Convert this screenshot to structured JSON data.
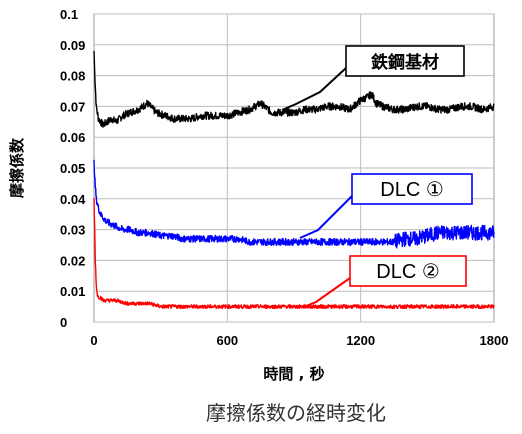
{
  "chart_data": {
    "type": "line",
    "title": "",
    "caption": "摩擦係数の経時変化",
    "xlabel": "時間 , 秒",
    "ylabel": "摩擦係数",
    "xlim": [
      0,
      1800
    ],
    "ylim": [
      0,
      0.1
    ],
    "xticks": [
      0,
      600,
      1200,
      1800
    ],
    "yticks": [
      "0",
      "0.01",
      "0.02",
      "0.03",
      "0.04",
      "0.05",
      "0.06",
      "0.07",
      "0.08",
      "0.09",
      "0.1"
    ],
    "grid": true,
    "series": [
      {
        "name": "鉄鋼基材",
        "color": "#000000",
        "x": [
          0,
          5,
          10,
          20,
          30,
          40,
          60,
          80,
          100,
          130,
          160,
          200,
          240,
          280,
          320,
          360,
          400,
          440,
          480,
          520,
          560,
          600,
          650,
          700,
          750,
          800,
          850,
          900,
          950,
          1000,
          1050,
          1100,
          1150,
          1200,
          1230,
          1250,
          1270,
          1300,
          1350,
          1400,
          1450,
          1500,
          1550,
          1600,
          1650,
          1700,
          1750,
          1800
        ],
        "y": [
          0.088,
          0.078,
          0.07,
          0.066,
          0.065,
          0.064,
          0.065,
          0.066,
          0.065,
          0.067,
          0.068,
          0.069,
          0.071,
          0.068,
          0.067,
          0.066,
          0.066,
          0.066,
          0.067,
          0.067,
          0.067,
          0.067,
          0.068,
          0.069,
          0.071,
          0.068,
          0.068,
          0.068,
          0.069,
          0.069,
          0.07,
          0.07,
          0.069,
          0.072,
          0.073,
          0.074,
          0.071,
          0.07,
          0.069,
          0.069,
          0.07,
          0.07,
          0.069,
          0.069,
          0.07,
          0.07,
          0.069,
          0.07
        ]
      },
      {
        "name": "DLC ①",
        "color": "#0000ff",
        "x": [
          0,
          5,
          10,
          20,
          30,
          50,
          70,
          100,
          130,
          160,
          200,
          250,
          300,
          350,
          400,
          450,
          500,
          550,
          600,
          650,
          700,
          750,
          800,
          850,
          900,
          950,
          1000,
          1050,
          1100,
          1150,
          1200,
          1250,
          1300,
          1350,
          1400,
          1450,
          1500,
          1550,
          1600,
          1650,
          1700,
          1750,
          1800
        ],
        "y": [
          0.052,
          0.045,
          0.04,
          0.037,
          0.035,
          0.033,
          0.032,
          0.031,
          0.03,
          0.03,
          0.029,
          0.029,
          0.028,
          0.028,
          0.027,
          0.027,
          0.027,
          0.027,
          0.027,
          0.027,
          0.026,
          0.026,
          0.026,
          0.026,
          0.026,
          0.026,
          0.026,
          0.026,
          0.026,
          0.026,
          0.026,
          0.026,
          0.026,
          0.026,
          0.027,
          0.027,
          0.028,
          0.029,
          0.029,
          0.029,
          0.029,
          0.029,
          0.029
        ]
      },
      {
        "name": "DLC ②",
        "color": "#ff0000",
        "x": [
          0,
          3,
          6,
          10,
          15,
          20,
          30,
          40,
          60,
          80,
          100,
          150,
          200,
          250,
          300,
          400,
          500,
          600,
          700,
          800,
          900,
          1000,
          1100,
          1200,
          1300,
          1400,
          1500,
          1600,
          1700,
          1800
        ],
        "y": [
          0.04,
          0.03,
          0.02,
          0.012,
          0.009,
          0.008,
          0.008,
          0.007,
          0.007,
          0.007,
          0.007,
          0.006,
          0.006,
          0.006,
          0.005,
          0.005,
          0.005,
          0.005,
          0.005,
          0.005,
          0.005,
          0.005,
          0.005,
          0.005,
          0.005,
          0.005,
          0.005,
          0.005,
          0.005,
          0.005
        ]
      }
    ],
    "annotations": [
      {
        "label": "鉄鋼基材",
        "series": 0,
        "border_color": "#000000",
        "text_color": "#000000"
      },
      {
        "label": "DLC ①",
        "series": 1,
        "border_color": "#0000ff",
        "text_color": "#000000"
      },
      {
        "label": "DLC ②",
        "series": 2,
        "border_color": "#ff0000",
        "text_color": "#000000"
      }
    ]
  }
}
